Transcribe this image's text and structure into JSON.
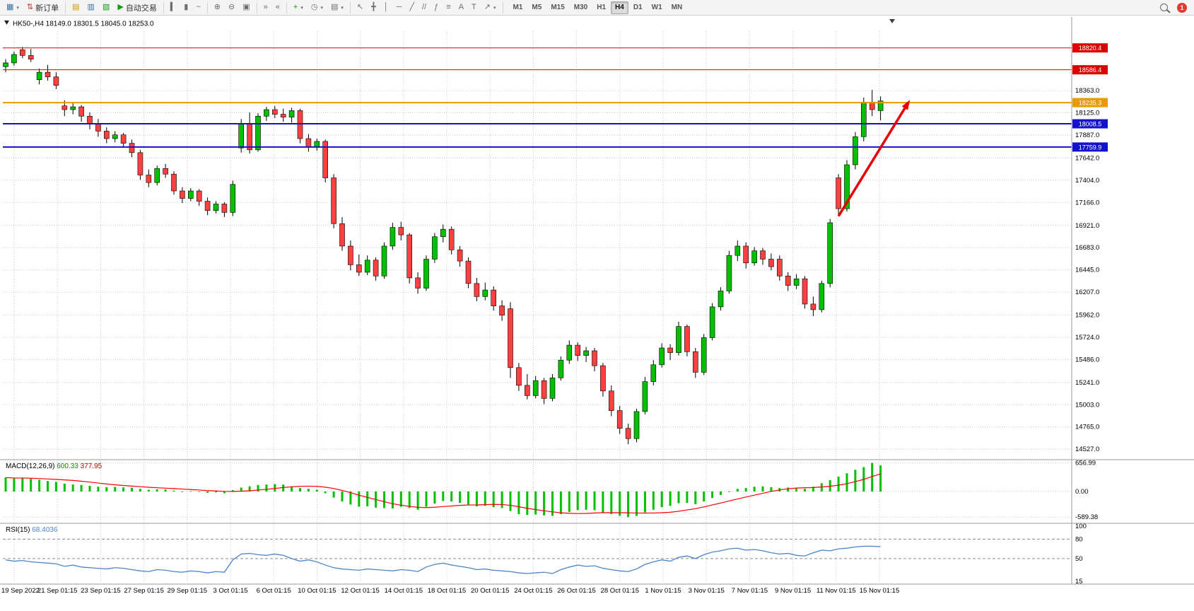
{
  "toolbar": {
    "new_order": "新订单",
    "auto_trading": "自动交易",
    "timeframes": [
      "M1",
      "M5",
      "M15",
      "M30",
      "H1",
      "H4",
      "D1",
      "W1",
      "MN"
    ],
    "active_timeframe": "H4",
    "notification_count": "1"
  },
  "icons": {
    "new_chart": "▦",
    "dropdown": "▾",
    "order_arrows": "⇅",
    "profiles": "▤",
    "data_window": "▥",
    "navigator": "▧",
    "play": "▶",
    "bar_chart": "▍",
    "candle_chart": "▮",
    "line_chart": "~",
    "zoom_in": "⊕",
    "zoom_out": "⊖",
    "tile": "▣",
    "auto_scroll": "»",
    "chart_shift": "«",
    "indicator_plus": "+",
    "clock": "◷",
    "template": "▤",
    "cursor": "↖",
    "crosshair": "╋",
    "vline": "│",
    "hline": "─",
    "trendline": "╱",
    "channel": "//",
    "fibo": "ƒ",
    "shapes": "≡",
    "text_a": "A",
    "text_label": "T",
    "arrow_tool": "↗"
  },
  "chart": {
    "info_line": "HK50-,H4  18149.0 18301.5 18045.0 18253.0"
  },
  "chart_data": [
    {
      "type": "candlestick",
      "symbol": "HK50-",
      "period": "H4",
      "ohlc": {
        "open": "18149.0",
        "high": "18301.5",
        "low": "18045.0",
        "close": "18253.0"
      },
      "price_range": {
        "max": 19000,
        "min": 14430
      },
      "colors": {
        "up": "#00c000",
        "down": "#ff4040",
        "wick": "#000000"
      },
      "y_ticks": [
        "18363.0",
        "18125.0",
        "17887.0",
        "17642.0",
        "17404.0",
        "17166.0",
        "16921.0",
        "16683.0",
        "16445.0",
        "16207.0",
        "15962.0",
        "15724.0",
        "15486.0",
        "15241.0",
        "15003.0",
        "14765.0",
        "14527.0"
      ],
      "x_ticks": [
        "19 Sep 2022",
        "21 Sep 01:15",
        "23 Sep 01:15",
        "27 Sep 01:15",
        "29 Sep 01:15",
        "3 Oct 01:15",
        "6 Oct 01:15",
        "10 Oct 01:15",
        "12 Oct 01:15",
        "14 Oct 01:15",
        "18 Oct 01:15",
        "20 Oct 01:15",
        "24 Oct 01:15",
        "26 Oct 01:15",
        "28 Oct 01:15",
        "1 Nov 01:15",
        "3 Nov 01:15",
        "7 Nov 01:15",
        "9 Nov 01:15",
        "11 Nov 01:15",
        "15 Nov 01:15"
      ],
      "horizontal_lines": [
        {
          "price": 18820.4,
          "label": "18820.4",
          "color": "#dd0000",
          "width": 1
        },
        {
          "price": 18586.4,
          "label": "18586.4",
          "color": "#dd0000",
          "width": 1
        },
        {
          "price": 18235.3,
          "label": "18235.3",
          "color": "#e69b00",
          "width": 2
        },
        {
          "price": 18008.5,
          "label": "18008.5",
          "color": "#1212cc",
          "width": 2
        },
        {
          "price": 17759.9,
          "label": "17759.9",
          "color": "#1212cc",
          "width": 2
        }
      ],
      "trend_arrow": {
        "from_index": 99,
        "from_price": 17020,
        "to_index": 107.5,
        "to_price": 18265,
        "color": "#e60000"
      },
      "candles": [
        [
          18620,
          18700,
          18560,
          18660
        ],
        [
          18660,
          18780,
          18630,
          18750
        ],
        [
          18800,
          18830,
          18710,
          18740
        ],
        [
          18740,
          18810,
          18670,
          18700
        ],
        [
          18480,
          18600,
          18430,
          18560
        ],
        [
          18560,
          18640,
          18470,
          18510
        ],
        [
          18510,
          18560,
          18380,
          18420
        ],
        [
          18200,
          18260,
          18090,
          18160
        ],
        [
          18160,
          18240,
          18110,
          18190
        ],
        [
          18190,
          18210,
          18030,
          18090
        ],
        [
          18090,
          18130,
          17950,
          18010
        ],
        [
          18010,
          18060,
          17870,
          17930
        ],
        [
          17930,
          17970,
          17800,
          17850
        ],
        [
          17850,
          17930,
          17810,
          17890
        ],
        [
          17890,
          17910,
          17750,
          17800
        ],
        [
          17800,
          17840,
          17650,
          17700
        ],
        [
          17700,
          17730,
          17410,
          17460
        ],
        [
          17460,
          17520,
          17330,
          17380
        ],
        [
          17380,
          17560,
          17350,
          17530
        ],
        [
          17530,
          17580,
          17430,
          17470
        ],
        [
          17470,
          17500,
          17250,
          17290
        ],
        [
          17290,
          17330,
          17160,
          17210
        ],
        [
          17210,
          17320,
          17180,
          17290
        ],
        [
          17290,
          17310,
          17130,
          17180
        ],
        [
          17180,
          17220,
          17030,
          17080
        ],
        [
          17080,
          17180,
          17050,
          17150
        ],
        [
          17150,
          17170,
          17010,
          17060
        ],
        [
          17060,
          17400,
          17020,
          17360
        ],
        [
          17750,
          18060,
          17700,
          18010
        ],
        [
          18010,
          18130,
          17690,
          17730
        ],
        [
          17730,
          18120,
          17710,
          18090
        ],
        [
          18090,
          18190,
          18040,
          18160
        ],
        [
          18160,
          18200,
          18070,
          18110
        ],
        [
          18110,
          18170,
          18030,
          18080
        ],
        [
          18080,
          18180,
          18020,
          18150
        ],
        [
          18150,
          18170,
          17800,
          17850
        ],
        [
          17850,
          17900,
          17710,
          17760
        ],
        [
          17760,
          17850,
          17720,
          17820
        ],
        [
          17820,
          17840,
          17380,
          17430
        ],
        [
          17430,
          17470,
          16890,
          16940
        ],
        [
          16940,
          17010,
          16650,
          16700
        ],
        [
          16700,
          16760,
          16440,
          16500
        ],
        [
          16500,
          16610,
          16380,
          16420
        ],
        [
          16420,
          16600,
          16390,
          16550
        ],
        [
          16550,
          16580,
          16330,
          16380
        ],
        [
          16380,
          16740,
          16350,
          16700
        ],
        [
          16700,
          16950,
          16660,
          16900
        ],
        [
          16900,
          16960,
          16760,
          16820
        ],
        [
          16820,
          16840,
          16300,
          16360
        ],
        [
          16360,
          16420,
          16190,
          16250
        ],
        [
          16250,
          16600,
          16220,
          16560
        ],
        [
          16560,
          16840,
          16520,
          16800
        ],
        [
          16800,
          16930,
          16740,
          16880
        ],
        [
          16880,
          16910,
          16610,
          16660
        ],
        [
          16660,
          16700,
          16480,
          16540
        ],
        [
          16540,
          16580,
          16250,
          16300
        ],
        [
          16300,
          16360,
          16110,
          16160
        ],
        [
          16160,
          16310,
          16120,
          16230
        ],
        [
          16230,
          16270,
          16010,
          16060
        ],
        [
          16060,
          16120,
          15900,
          15960
        ],
        [
          16030,
          16100,
          15290,
          15400
        ],
        [
          15400,
          15450,
          15150,
          15210
        ],
        [
          15210,
          15330,
          15060,
          15100
        ],
        [
          15100,
          15310,
          15070,
          15260
        ],
        [
          15260,
          15290,
          15010,
          15070
        ],
        [
          15070,
          15330,
          15040,
          15290
        ],
        [
          15290,
          15520,
          15260,
          15480
        ],
        [
          15480,
          15690,
          15440,
          15640
        ],
        [
          15640,
          15670,
          15470,
          15530
        ],
        [
          15530,
          15620,
          15460,
          15580
        ],
        [
          15580,
          15610,
          15360,
          15420
        ],
        [
          15420,
          15450,
          15090,
          15150
        ],
        [
          15150,
          15210,
          14880,
          14940
        ],
        [
          14940,
          14990,
          14690,
          14750
        ],
        [
          14750,
          14800,
          14580,
          14640
        ],
        [
          14640,
          14960,
          14600,
          14930
        ],
        [
          14930,
          15300,
          14900,
          15250
        ],
        [
          15250,
          15480,
          15210,
          15430
        ],
        [
          15430,
          15660,
          15400,
          15610
        ],
        [
          15610,
          15650,
          15480,
          15560
        ],
        [
          15560,
          15890,
          15530,
          15840
        ],
        [
          15840,
          15860,
          15520,
          15570
        ],
        [
          15570,
          15610,
          15290,
          15350
        ],
        [
          15350,
          15760,
          15320,
          15720
        ],
        [
          15720,
          16090,
          15690,
          16050
        ],
        [
          16050,
          16260,
          16010,
          16220
        ],
        [
          16220,
          16650,
          16190,
          16600
        ],
        [
          16600,
          16760,
          16540,
          16700
        ],
        [
          16700,
          16740,
          16460,
          16520
        ],
        [
          16520,
          16690,
          16490,
          16650
        ],
        [
          16650,
          16680,
          16500,
          16560
        ],
        [
          16560,
          16620,
          16440,
          16480
        ],
        [
          16560,
          16600,
          16330,
          16380
        ],
        [
          16380,
          16420,
          16220,
          16280
        ],
        [
          16280,
          16400,
          16240,
          16350
        ],
        [
          16350,
          16380,
          16030,
          16080
        ],
        [
          16080,
          16160,
          15950,
          16020
        ],
        [
          16020,
          16330,
          15990,
          16300
        ],
        [
          16300,
          16990,
          16260,
          16950
        ],
        [
          17430,
          17470,
          17040,
          17100
        ],
        [
          17100,
          17620,
          17070,
          17570
        ],
        [
          17570,
          17920,
          17520,
          17870
        ],
        [
          17870,
          18290,
          17820,
          18240
        ],
        [
          18240,
          18370,
          18090,
          18160
        ],
        [
          18149,
          18302,
          18045,
          18253
        ]
      ]
    },
    {
      "type": "bar",
      "name": "MACD(12,26,9)",
      "value_main": "600.33",
      "value_signal": "377.95",
      "y_ticks": [
        "656.99",
        "0.00",
        "-589.38"
      ],
      "y_range": {
        "max": 700,
        "min": -700
      },
      "histogram_color": "#00c000",
      "signal_color": "#ff0000",
      "histogram": [
        320,
        300,
        310,
        290,
        270,
        240,
        220,
        180,
        160,
        150,
        130,
        110,
        100,
        105,
        95,
        85,
        60,
        40,
        50,
        45,
        20,
        0,
        10,
        -10,
        -30,
        -20,
        -40,
        30,
        90,
        120,
        150,
        160,
        170,
        160,
        120,
        80,
        60,
        40,
        -40,
        -140,
        -230,
        -300,
        -350,
        -340,
        -370,
        -380,
        -390,
        -350,
        -380,
        -420,
        -350,
        -280,
        -220,
        -230,
        -260,
        -300,
        -340,
        -330,
        -360,
        -380,
        -450,
        -520,
        -540,
        -530,
        -550,
        -560,
        -520,
        -470,
        -430,
        -420,
        -430,
        -480,
        -520,
        -560,
        -589,
        -560,
        -480,
        -420,
        -360,
        -330,
        -270,
        -260,
        -290,
        -230,
        -150,
        -80,
        0,
        60,
        80,
        110,
        120,
        100,
        80,
        90,
        70,
        60,
        110,
        190,
        260,
        340,
        420,
        500,
        560,
        657,
        600
      ]
    },
    {
      "type": "line",
      "name": "RSI(15)",
      "value": "68.4036",
      "y_ticks": [
        "100",
        "80",
        "50",
        "15"
      ],
      "levels": [
        80,
        50
      ],
      "y_range": {
        "max": 100,
        "min": 15
      },
      "line_color": "#4a86c8",
      "values": [
        48,
        46,
        47,
        45,
        44,
        43,
        42,
        38,
        40,
        37,
        36,
        35,
        34,
        36,
        35,
        33,
        31,
        30,
        33,
        32,
        30,
        29,
        31,
        30,
        28,
        30,
        29,
        48,
        57,
        58,
        56,
        55,
        57,
        55,
        50,
        46,
        48,
        45,
        40,
        36,
        34,
        33,
        32,
        34,
        33,
        32,
        31,
        33,
        32,
        30,
        37,
        41,
        43,
        40,
        38,
        36,
        33,
        34,
        32,
        31,
        30,
        28,
        27,
        28,
        29,
        27,
        33,
        37,
        40,
        38,
        39,
        35,
        33,
        31,
        30,
        34,
        41,
        45,
        48,
        46,
        52,
        54,
        50,
        56,
        60,
        62,
        65,
        66,
        63,
        64,
        62,
        59,
        57,
        58,
        55,
        54,
        59,
        63,
        62,
        65,
        66,
        68,
        69,
        69,
        68.4
      ]
    }
  ]
}
